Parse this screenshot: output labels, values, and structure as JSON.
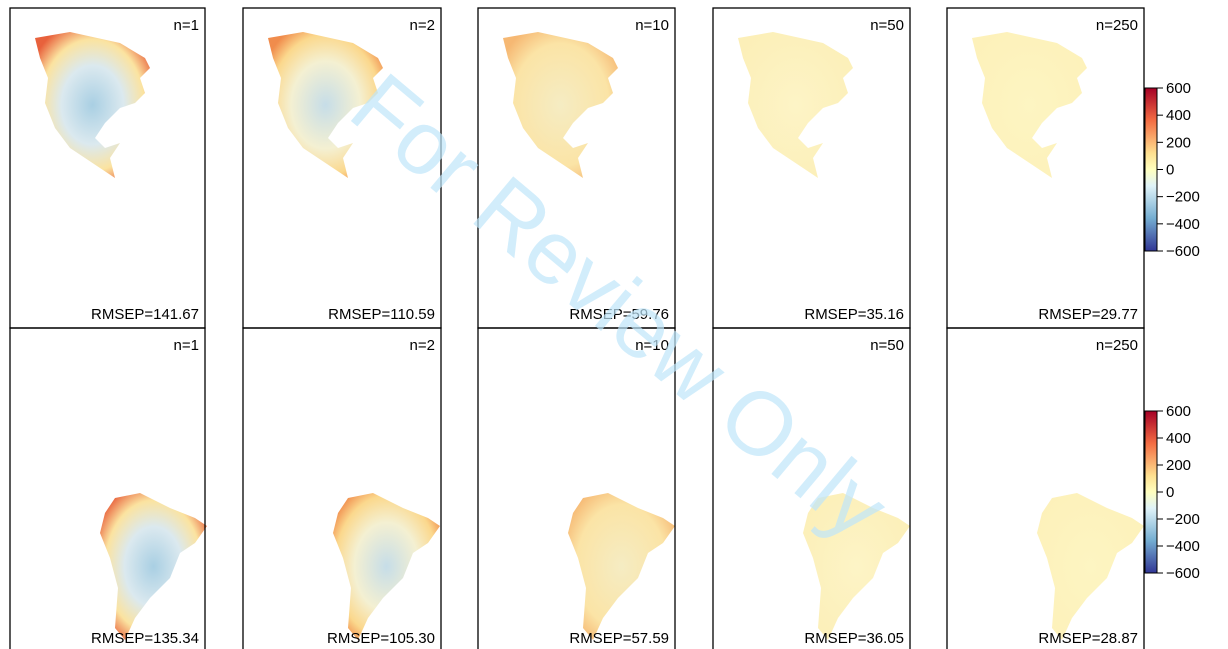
{
  "panels": [
    [
      {
        "n": "n=1",
        "rmsep": "RMSEP=141.67"
      },
      {
        "n": "n=2",
        "rmsep": "RMSEP=110.59"
      },
      {
        "n": "n=10",
        "rmsep": "RMSEP=59.76"
      },
      {
        "n": "n=50",
        "rmsep": "RMSEP=35.16"
      },
      {
        "n": "n=250",
        "rmsep": "RMSEP=29.77"
      }
    ],
    [
      {
        "n": "n=1",
        "rmsep": "RMSEP=135.34"
      },
      {
        "n": "n=2",
        "rmsep": "RMSEP=105.30"
      },
      {
        "n": "n=10",
        "rmsep": "RMSEP=57.59"
      },
      {
        "n": "n=50",
        "rmsep": "RMSEP=36.05"
      },
      {
        "n": "n=250",
        "rmsep": "RMSEP=28.87"
      }
    ]
  ],
  "colorbars": [
    {
      "lim": [
        -600,
        600
      ],
      "ticks": [
        600,
        400,
        200,
        0,
        {
          "value": -200,
          "label": "−200"
        },
        {
          "value": -400,
          "label": "−400"
        },
        {
          "value": -600,
          "label": "−600"
        }
      ]
    },
    {
      "lim": [
        -600,
        600
      ],
      "ticks": [
        600,
        400,
        200,
        0,
        {
          "value": -200,
          "label": "−200"
        },
        {
          "value": -400,
          "label": "−400"
        },
        {
          "value": -600,
          "label": "−600"
        }
      ]
    }
  ],
  "watermark": "For Review Only"
}
